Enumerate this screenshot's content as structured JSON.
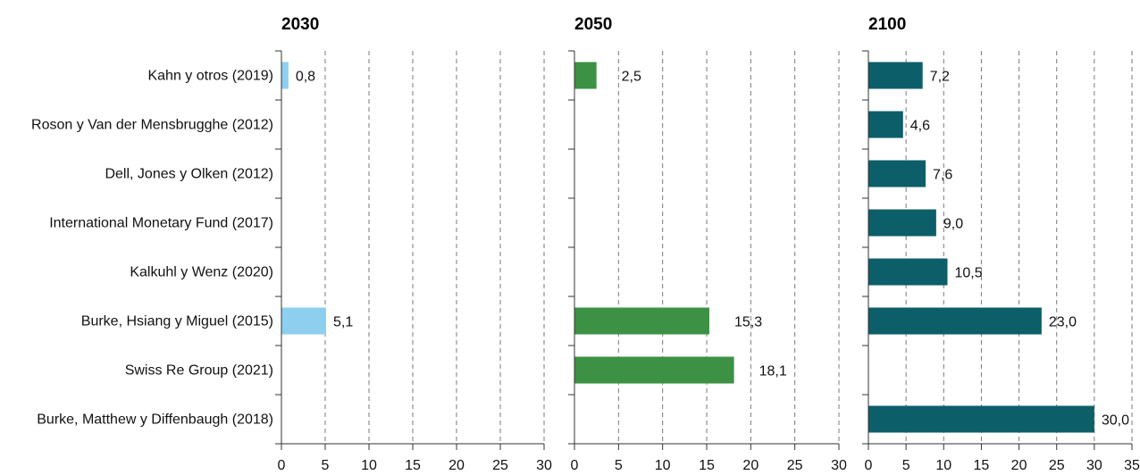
{
  "chart_data": {
    "type": "bar",
    "orientation": "horizontal",
    "categories": [
      "Kahn y otros (2019)",
      "Roson y Van der Mensbrugghe (2012)",
      "Dell, Jones y Olken (2012)",
      "International Monetary Fund (2017)",
      "Kalkuhl y Wenz (2020)",
      "Burke, Hsiang y Miguel (2015)",
      "Swiss Re Group (2021)",
      "Burke, Matthew y Diffenbaugh (2018)"
    ],
    "grid": "vertical dashed",
    "panels": [
      {
        "title": "2030",
        "color": "#8ecfef",
        "xlim": [
          0,
          30
        ],
        "xticks": [
          0,
          5,
          10,
          15,
          20,
          25,
          30
        ],
        "values": [
          0.8,
          null,
          null,
          null,
          null,
          5.1,
          null,
          null
        ],
        "labels": [
          "0,8",
          "",
          "",
          "",
          "",
          "5,1",
          "",
          ""
        ]
      },
      {
        "title": "2050",
        "color": "#3d9144",
        "xlim": [
          0,
          30
        ],
        "xticks": [
          0,
          5,
          10,
          15,
          20,
          25,
          30
        ],
        "values": [
          2.5,
          null,
          null,
          null,
          null,
          15.3,
          18.1,
          null
        ],
        "labels": [
          "2,5",
          "",
          "",
          "",
          "",
          "15,3",
          "18,1",
          ""
        ]
      },
      {
        "title": "2100",
        "color": "#0c5e69",
        "xlim": [
          0,
          35
        ],
        "xticks": [
          0,
          5,
          10,
          15,
          20,
          25,
          30,
          35
        ],
        "values": [
          7.2,
          4.6,
          7.6,
          9.0,
          10.5,
          23.0,
          null,
          30.0
        ],
        "labels": [
          "7,2",
          "4,6",
          "7,6",
          "9,0",
          "10,5",
          "23,0",
          "",
          "30,0"
        ]
      }
    ]
  }
}
